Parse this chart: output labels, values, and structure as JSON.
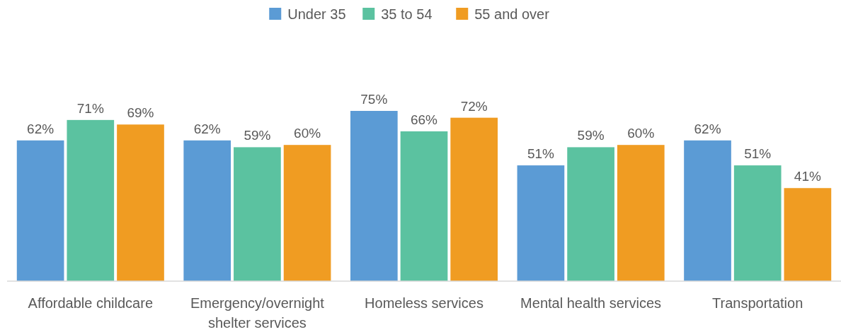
{
  "chart_data": {
    "type": "bar",
    "categories": [
      "Affordable childcare",
      "Emergency/overnight shelter services",
      "Homeless services",
      "Mental health services",
      "Transportation"
    ],
    "series": [
      {
        "name": "Under 35",
        "color": "#5b9bd5",
        "values": [
          62,
          62,
          75,
          51,
          62
        ],
        "value_labels": [
          "62%",
          "62%",
          "75%",
          "51%",
          "62%"
        ]
      },
      {
        "name": "35 to 54",
        "color": "#5bc2a0",
        "values": [
          71,
          59,
          66,
          59,
          51
        ],
        "value_labels": [
          "71%",
          "59%",
          "66%",
          "59%",
          "51%"
        ]
      },
      {
        "name": "55 and over",
        "color": "#f09c22",
        "values": [
          69,
          60,
          72,
          60,
          41
        ],
        "value_labels": [
          "69%",
          "60%",
          "72%",
          "60%",
          "41%"
        ]
      }
    ],
    "legend": "top"
  }
}
